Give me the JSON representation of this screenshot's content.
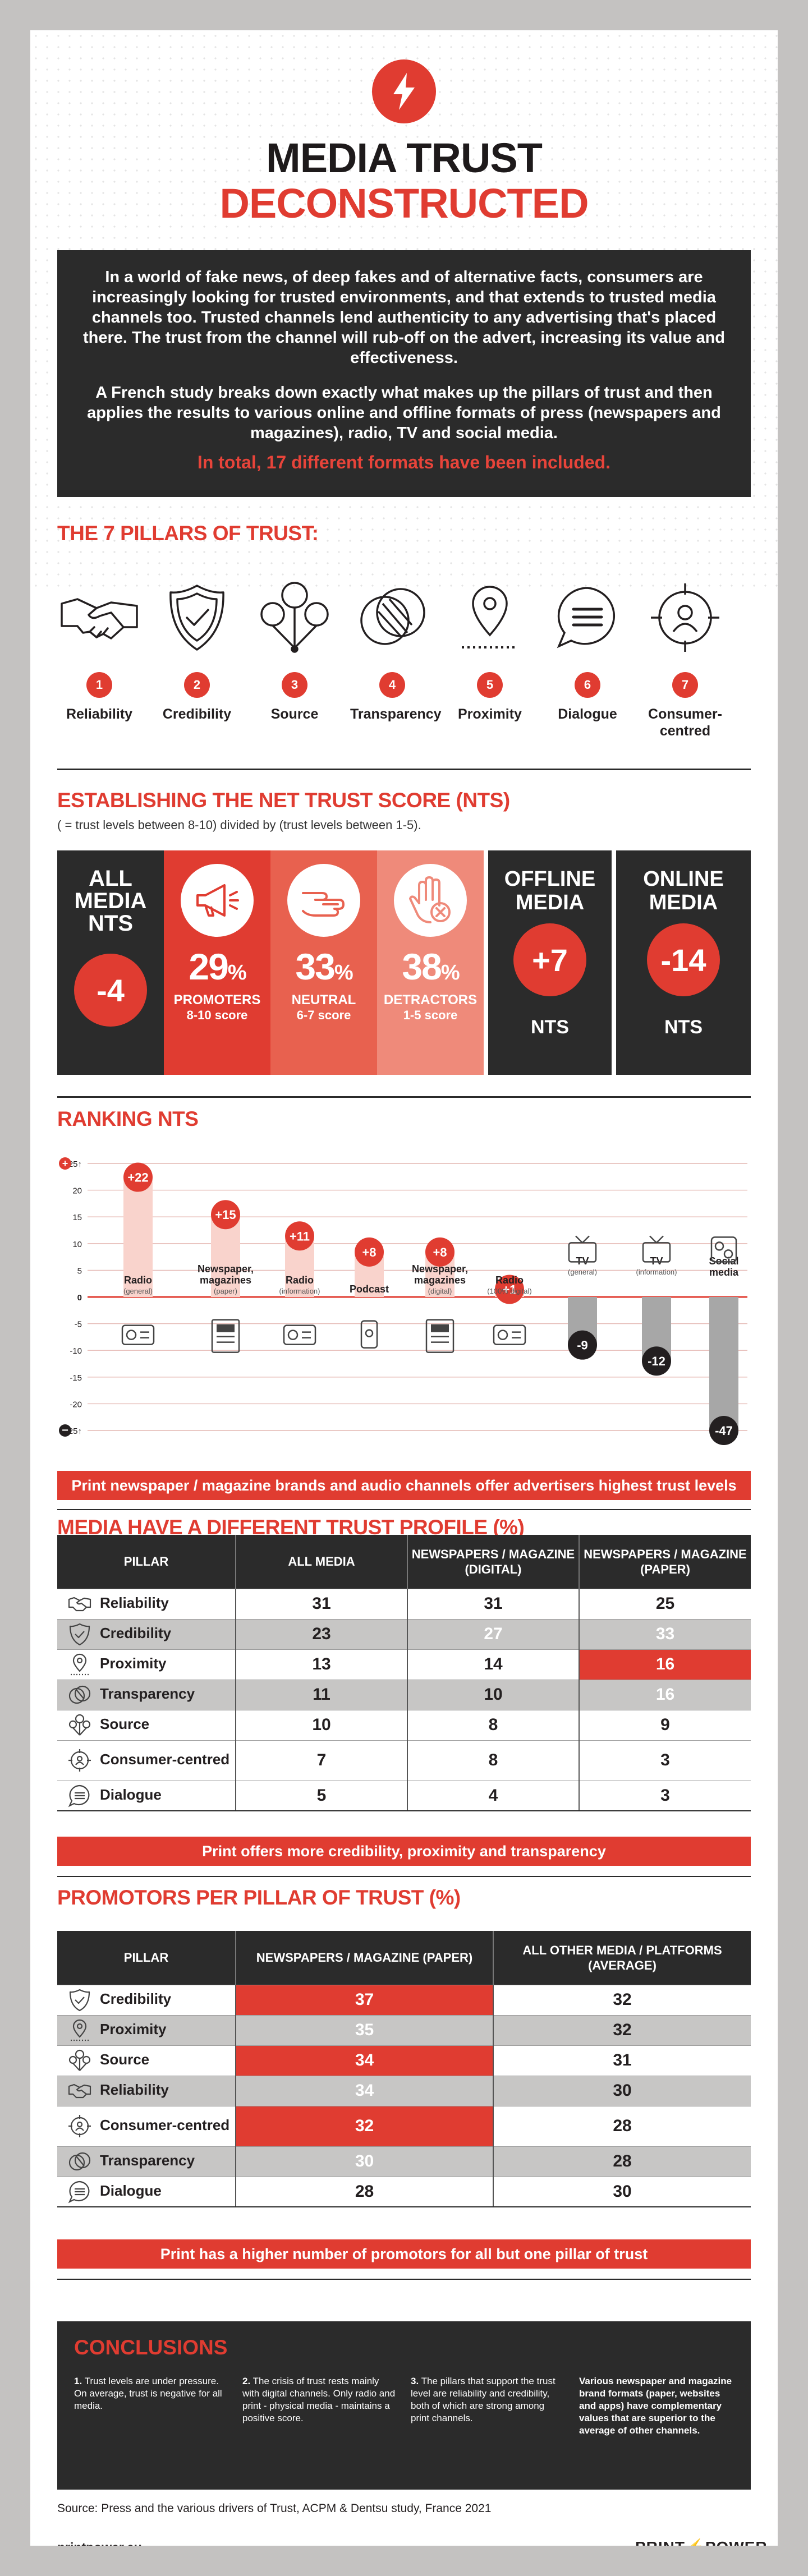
{
  "header": {
    "title_line1": "MEDIA TRUST",
    "title_line2": "DECONSTRUCTED",
    "intro_p1": "In a world of fake news, of deep fakes and of alternative facts, consumers are increasingly looking for trusted environments, and that extends to trusted media channels too. Trusted channels lend authenticity to any advertising that's placed there. The trust from the channel will rub-off on the advert, increasing its value and effectiveness.",
    "intro_p2": "A French study breaks down exactly what makes up the pillars of trust and then applies the results to various online and offline formats of press (newspapers and magazines), radio, TV and social media.",
    "intro_highlight": "In total, 17 different formats have been included."
  },
  "pillars": {
    "heading": "THE 7 PILLARS OF TRUST:",
    "items": [
      {
        "num": "1",
        "label": "Reliability",
        "icon": "handshake-icon"
      },
      {
        "num": "2",
        "label": "Credibility",
        "icon": "shield-check-icon"
      },
      {
        "num": "3",
        "label": "Source",
        "icon": "balloons-icon"
      },
      {
        "num": "4",
        "label": "Transparency",
        "icon": "overlapping-circles-icon"
      },
      {
        "num": "5",
        "label": "Proximity",
        "icon": "location-pin-icon"
      },
      {
        "num": "6",
        "label": "Dialogue",
        "icon": "speech-bubble-icon"
      },
      {
        "num": "7",
        "label": "Consumer-centred",
        "icon": "target-person-icon"
      }
    ]
  },
  "nts": {
    "heading": "ESTABLISHING THE NET TRUST SCORE (NTS)",
    "subtitle": "( = trust levels between 8-10) divided by (trust levels between 1-5).",
    "all_media_label": "ALL MEDIA NTS",
    "all_media_value": "-4",
    "promoters": {
      "pct": "29",
      "unit": "%",
      "label": "PROMOTERS",
      "range": "8-10 score",
      "color": "#e03c31"
    },
    "neutral": {
      "pct": "33",
      "unit": "%",
      "label": "NEUTRAL",
      "range": "6-7 score",
      "color": "#e8614f"
    },
    "detractors": {
      "pct": "38",
      "unit": "%",
      "label": "DETRACTORS",
      "range": "1-5 score",
      "color": "#ef8a7a"
    },
    "offline": {
      "label": "OFFLINE MEDIA",
      "value": "+7",
      "unit": "NTS"
    },
    "online": {
      "label": "ONLINE MEDIA",
      "value": "-14",
      "unit": "NTS"
    }
  },
  "chart_data": {
    "type": "bar",
    "title": "RANKING NTS",
    "ylim": [
      -25,
      25
    ],
    "y_ticks": [
      "25",
      "20",
      "15",
      "10",
      "5",
      "0",
      "-5",
      "-10",
      "-15",
      "-20",
      "-25"
    ],
    "categories": [
      {
        "name": "Radio",
        "sub": "(general)",
        "value": 22,
        "label": "+22"
      },
      {
        "name": "Newspaper, magazines",
        "sub": "(paper)",
        "value": 15,
        "label": "+15"
      },
      {
        "name": "Radio",
        "sub": "(information)",
        "value": 11,
        "label": "+11"
      },
      {
        "name": "Podcast",
        "sub": "",
        "value": 8,
        "label": "+8"
      },
      {
        "name": "Newspaper, magazines",
        "sub": "(digital)",
        "value": 8,
        "label": "+8"
      },
      {
        "name": "Radio",
        "sub": "(100% digital)",
        "value": 1,
        "label": "+1"
      },
      {
        "name": "TV",
        "sub": "(general)",
        "value": -9,
        "label": "-9"
      },
      {
        "name": "TV",
        "sub": "(information)",
        "value": -12,
        "label": "-12"
      },
      {
        "name": "Social media",
        "sub": "",
        "value": -47,
        "label": "-47"
      }
    ],
    "grid": true
  },
  "ranking_banner": "Print newspaper / magazine brands and audio channels offer advertisers highest trust levels",
  "trust_profile": {
    "heading": "MEDIA HAVE A DIFFERENT TRUST PROFILE (%)",
    "columns": [
      "PILLAR",
      "ALL MEDIA",
      "NEWSPAPERS / MAGAZINE (DIGITAL)",
      "NEWSPAPERS / MAGAZINE (PAPER)"
    ],
    "rows": [
      {
        "pillar": "Reliability",
        "icon": "handshake-icon",
        "v": [
          "31",
          "31",
          "25"
        ]
      },
      {
        "pillar": "Credibility",
        "icon": "shield-check-icon",
        "v": [
          "23",
          "27",
          "33"
        ]
      },
      {
        "pillar": "Proximity",
        "icon": "location-pin-icon",
        "v": [
          "13",
          "14",
          "16"
        ]
      },
      {
        "pillar": "Transparency",
        "icon": "overlapping-circles-icon",
        "v": [
          "11",
          "10",
          "16"
        ]
      },
      {
        "pillar": "Source",
        "icon": "balloons-icon",
        "v": [
          "10",
          "8",
          "9"
        ]
      },
      {
        "pillar": "Consumer-centred",
        "icon": "target-person-icon",
        "v": [
          "7",
          "8",
          "3"
        ]
      },
      {
        "pillar": "Dialogue",
        "icon": "speech-bubble-icon",
        "v": [
          "5",
          "4",
          "3"
        ]
      }
    ],
    "banner": "Print offers more credibility, proximity and transparency"
  },
  "promoters_table": {
    "heading": "PROMOTORS PER PILLAR OF TRUST (%)",
    "columns": [
      "PILLAR",
      "NEWSPAPERS / MAGAZINE (PAPER)",
      "ALL OTHER MEDIA / PLATFORMS (AVERAGE)"
    ],
    "rows": [
      {
        "pillar": "Credibility",
        "icon": "shield-check-icon",
        "v": [
          "37",
          "32"
        ]
      },
      {
        "pillar": "Proximity",
        "icon": "location-pin-icon",
        "v": [
          "35",
          "32"
        ]
      },
      {
        "pillar": "Source",
        "icon": "balloons-icon",
        "v": [
          "34",
          "31"
        ]
      },
      {
        "pillar": "Reliability",
        "icon": "handshake-icon",
        "v": [
          "34",
          "30"
        ]
      },
      {
        "pillar": "Consumer-centred",
        "icon": "target-person-icon",
        "v": [
          "32",
          "28"
        ]
      },
      {
        "pillar": "Transparency",
        "icon": "overlapping-circles-icon",
        "v": [
          "30",
          "28"
        ]
      },
      {
        "pillar": "Dialogue",
        "icon": "speech-bubble-icon",
        "v": [
          "28",
          "30"
        ]
      }
    ],
    "banner": "Print has a higher number of promotors for all but one pillar of trust"
  },
  "conclusions": {
    "heading": "CONCLUSIONS",
    "c1_num": "1.",
    "c1": "Trust levels are under pressure. On average, trust is negative for all media.",
    "c2_num": "2.",
    "c2": "The crisis of trust rests mainly with digital channels. Only radio and print - physical media - maintains a positive score.",
    "c3_num": "3.",
    "c3": "The pillars that support the trust level are reliability and credibility, both of which are strong among print channels.",
    "c4": "Various newspaper and magazine brand formats (paper, websites and apps) have complementary values that are superior to the average of other channels."
  },
  "footer": {
    "source": "Source: Press and the various drivers of Trust, ACPM & Dentsu study, France 2021",
    "site": "printpower.eu",
    "brand_left": "PRINT",
    "brand_right": "POWER"
  },
  "colors": {
    "accent": "#e03c31",
    "dark": "#2b2b2b",
    "grey_bg": "#c4c2c1"
  }
}
